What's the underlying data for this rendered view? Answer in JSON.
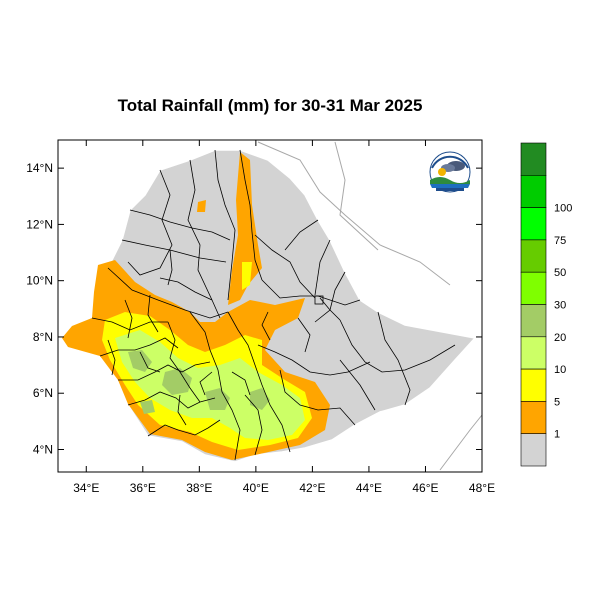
{
  "title": "Total Rainfall (mm) for 30-31 Mar 2025",
  "map": {
    "x_ticks": [
      "34°E",
      "36°E",
      "38°E",
      "40°E",
      "42°E",
      "44°E",
      "46°E",
      "48°E"
    ],
    "y_ticks": [
      "4°N",
      "6°N",
      "8°N",
      "10°N",
      "12°N",
      "14°N"
    ],
    "lon_range": [
      33,
      48
    ],
    "lat_range": [
      3.2,
      15
    ]
  },
  "legend": {
    "labels": [
      "1",
      "5",
      "10",
      "20",
      "30",
      "50",
      "75",
      "100"
    ],
    "colors": [
      "#d3d3d3",
      "#ffa500",
      "#ffff00",
      "#ccff66",
      "#a3cc66",
      "#7fff00",
      "#66cc00",
      "#00ff00",
      "#00cc00",
      "#228b22"
    ]
  },
  "colors": {
    "land": "#d3d3d3",
    "rain_1_5": "#ffa500",
    "rain_5_10": "#ffff00",
    "rain_10_20": "#ccff66",
    "rain_20_30": "#a3cc66"
  },
  "logo_icon": "meteorology-agency-logo"
}
